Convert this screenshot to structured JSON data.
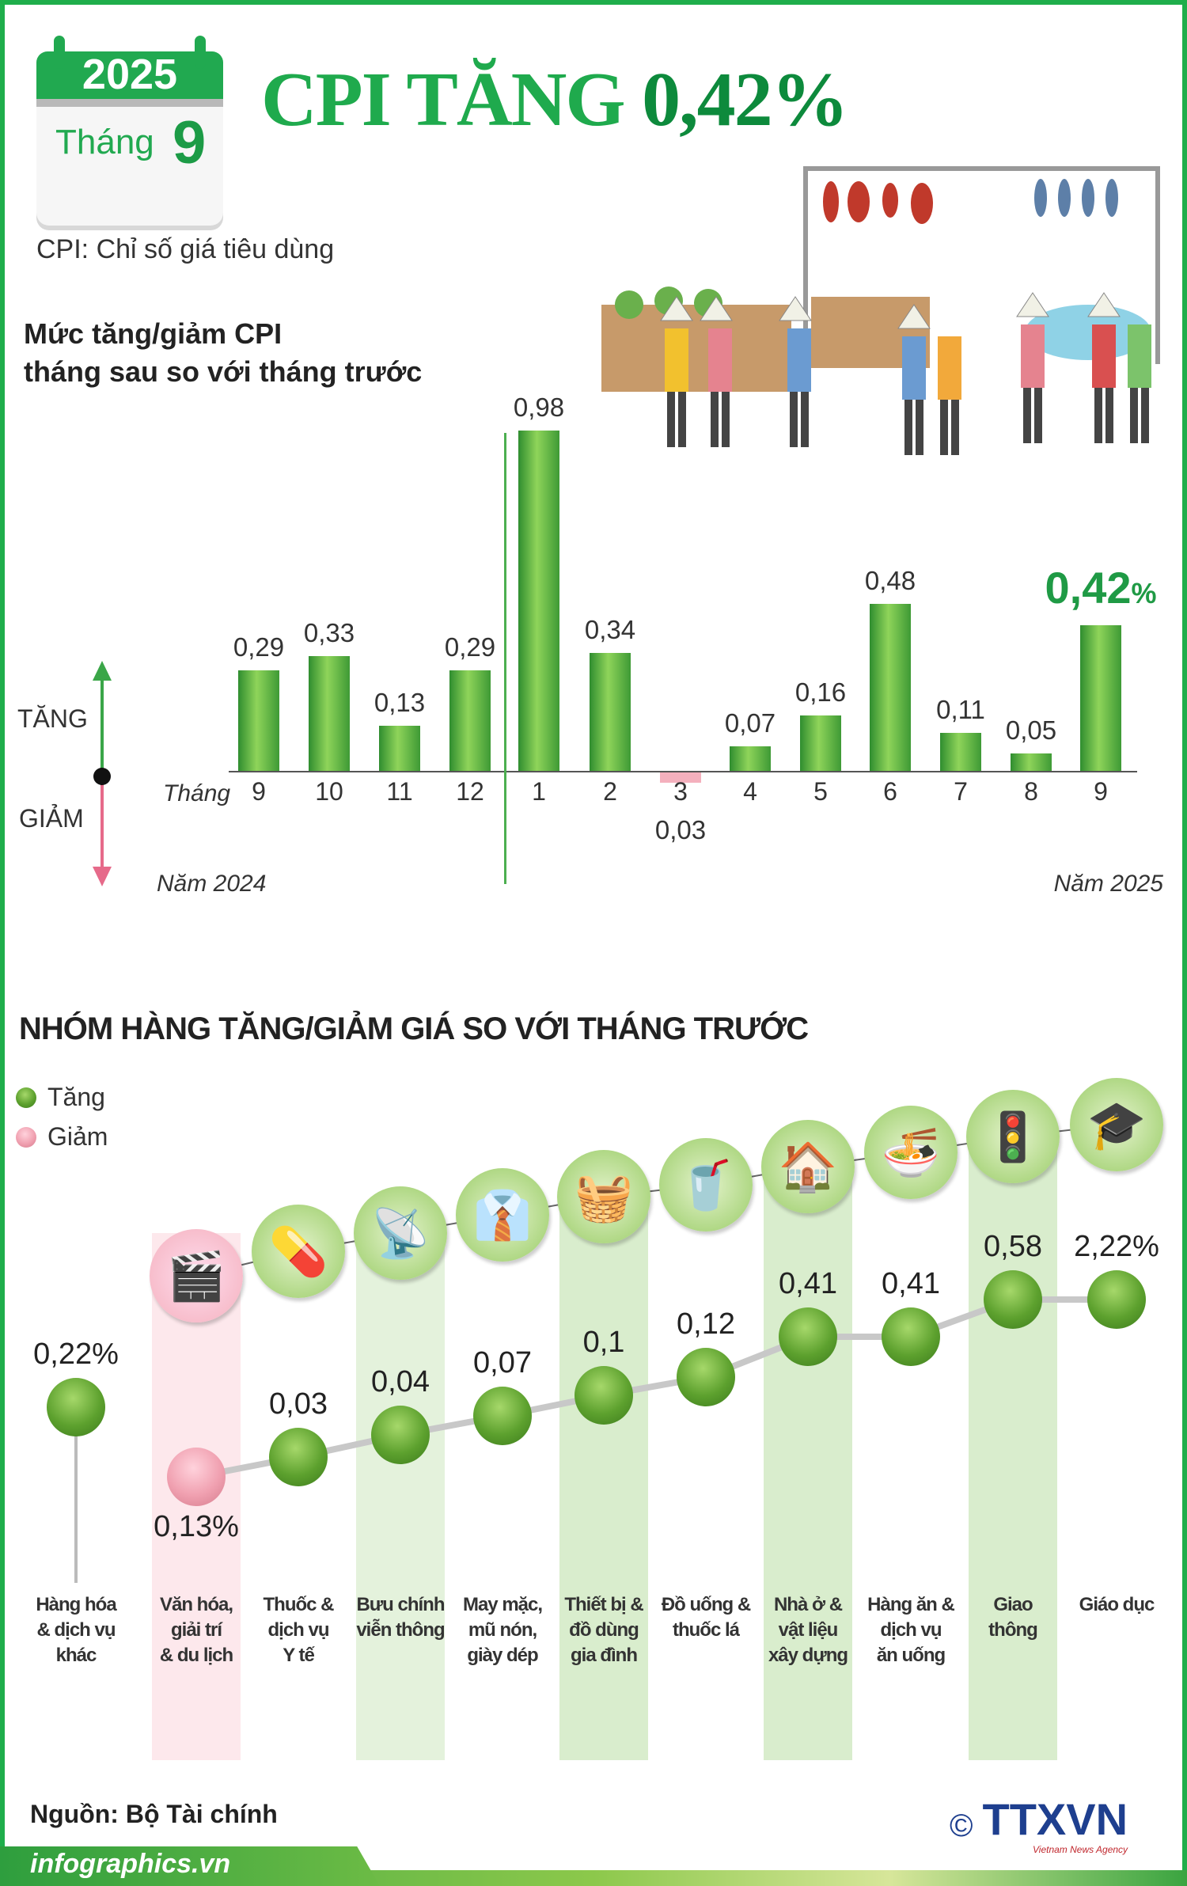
{
  "header": {
    "calendar_year": "2025",
    "calendar_month_label": "Tháng",
    "calendar_month": "9",
    "title_prefix": "CPI TĂNG",
    "title_value": "0,42%",
    "subtitle": "CPI: Chỉ số giá tiêu dùng"
  },
  "colors": {
    "brand_green": "#1faa4d",
    "increase": "#5da12e",
    "decrease": "#f0a0b0"
  },
  "chart_data": [
    {
      "type": "bar",
      "title": "Mức tăng/giảm CPI tháng sau so với tháng trước",
      "title_lines": [
        "Mức tăng/giảm CPI",
        "tháng sau so với tháng trước"
      ],
      "xlabel": "Tháng",
      "up_label": "TĂNG",
      "down_label": "GIẢM",
      "year_labels": [
        "Năm 2024",
        "Năm 2025"
      ],
      "categories": [
        "9",
        "10",
        "11",
        "12",
        "1",
        "2",
        "3",
        "4",
        "5",
        "6",
        "7",
        "8",
        "9"
      ],
      "values": [
        0.29,
        0.33,
        0.13,
        0.29,
        0.98,
        0.34,
        -0.03,
        0.07,
        0.16,
        0.48,
        0.11,
        0.05,
        0.42
      ],
      "labels": [
        "0,29",
        "0,33",
        "0,13",
        "0,29",
        "0,98",
        "0,34",
        "0,03",
        "0,07",
        "0,16",
        "0,48",
        "0,11",
        "0,05",
        "0,42"
      ],
      "highlight_suffix": "%",
      "ylim": [
        -0.1,
        1.0
      ],
      "grid": false
    },
    {
      "type": "scatter",
      "title": "NHÓM HÀNG TĂNG/GIẢM GIÁ SO VỚI THÁNG TRƯỚC",
      "legend": [
        {
          "name": "Tăng",
          "color": "#5da12e"
        },
        {
          "name": "Giảm",
          "color": "#f0a0b0"
        }
      ],
      "legend_position": "top-left",
      "categories": [
        {
          "label": [
            "Hàng hóa",
            "& dịch vụ",
            "khác"
          ],
          "value": 0.22,
          "text": "0,22%",
          "direction": "up",
          "icon": "none"
        },
        {
          "label": [
            "Văn hóa,",
            "giải trí",
            "& du lịch"
          ],
          "value": -0.13,
          "text": "0,13%",
          "direction": "down",
          "icon": "cinema-icon"
        },
        {
          "label": [
            "Thuốc &",
            "dịch vụ",
            "Y tế"
          ],
          "value": 0.03,
          "text": "0,03",
          "direction": "up",
          "icon": "pills-icon"
        },
        {
          "label": [
            "Bưu chính",
            "viễn thông"
          ],
          "value": 0.04,
          "text": "0,04",
          "direction": "up",
          "icon": "antenna-icon"
        },
        {
          "label": [
            "May mặc,",
            "mũ nón,",
            "giày dép"
          ],
          "value": 0.07,
          "text": "0,07",
          "direction": "up",
          "icon": "clothes-icon"
        },
        {
          "label": [
            "Thiết bị &",
            "đồ dùng",
            "gia đình"
          ],
          "value": 0.1,
          "text": "0,1",
          "direction": "up",
          "icon": "washing-machine-icon"
        },
        {
          "label": [
            "Đồ uống &",
            "thuốc lá"
          ],
          "value": 0.12,
          "text": "0,12",
          "direction": "up",
          "icon": "drink-cigarette-icon"
        },
        {
          "label": [
            "Nhà ở &",
            "vật liệu",
            "xây dựng"
          ],
          "value": 0.41,
          "text": "0,41",
          "direction": "up",
          "icon": "house-utility-icon"
        },
        {
          "label": [
            "Hàng ăn &",
            "dịch vụ",
            "ăn uống"
          ],
          "value": 0.41,
          "text": "0,41",
          "direction": "up",
          "icon": "food-bowl-icon"
        },
        {
          "label": [
            "Giao thông"
          ],
          "value": 0.58,
          "text": "0,58",
          "direction": "up",
          "icon": "traffic-light-icon"
        },
        {
          "label": [
            "Giáo dục"
          ],
          "value": 2.22,
          "text": "2,22%",
          "direction": "up",
          "icon": "graduation-cap-icon"
        }
      ]
    }
  ],
  "footer": {
    "source": "Nguồn: Bộ Tài chính",
    "site": "infographics.vn",
    "logo": "TTXVN",
    "logo_sub": "Vietnam News Agency",
    "copyright": "©"
  }
}
